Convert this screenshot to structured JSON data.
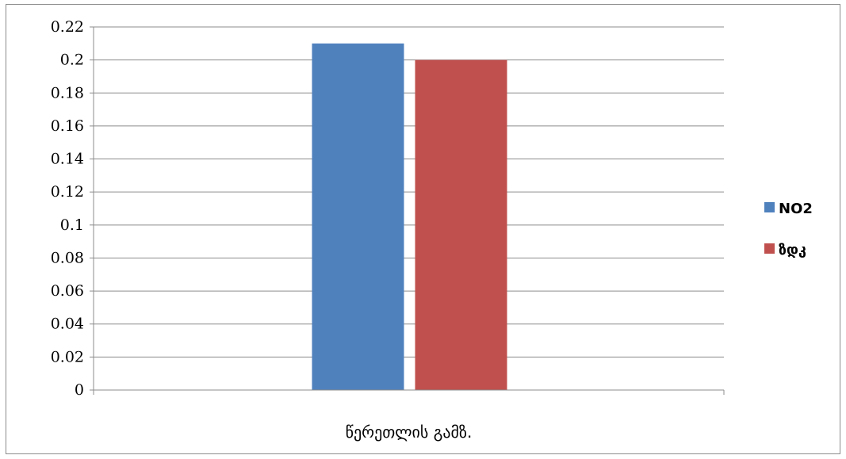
{
  "chart_data": {
    "type": "bar",
    "categories": [
      "წერეთლის გამზ."
    ],
    "series": [
      {
        "name": "NO2",
        "values": [
          0.21
        ],
        "color": "#4f81bd"
      },
      {
        "name": "ზდკ",
        "values": [
          0.2
        ],
        "color": "#c0504d"
      }
    ],
    "ylim": [
      0,
      0.22
    ],
    "yticks": [
      "0",
      "0.02",
      "0.04",
      "0.06",
      "0.08",
      "0.1",
      "0.12",
      "0.14",
      "0.16",
      "0.18",
      "0.2",
      "0.22"
    ],
    "grid": true,
    "legend": "right",
    "gridline_color": "#8c8c8c"
  }
}
